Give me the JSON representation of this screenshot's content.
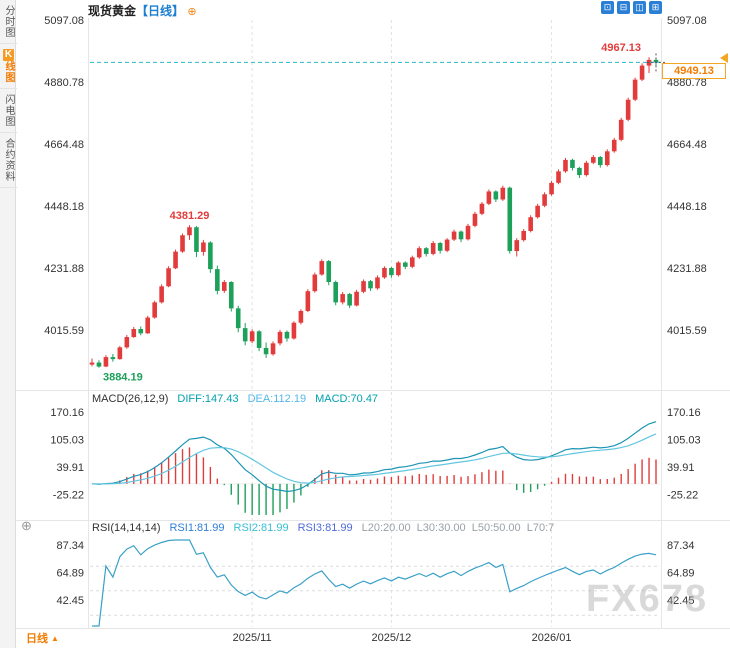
{
  "header": {
    "instrument": "现货黄金",
    "period_tag": "【日线】",
    "add_icon": "⊕",
    "icons": [
      {
        "name": "layout-single-pane-icon",
        "glyph": "⊡"
      },
      {
        "name": "layout-two-pane-icon",
        "glyph": "⊟"
      },
      {
        "name": "layout-three-pane-icon",
        "glyph": "◫"
      },
      {
        "name": "layout-grid-pane-icon",
        "glyph": "⊞"
      }
    ]
  },
  "sidebar": {
    "items": [
      {
        "name": "sidebar-item-time-chart",
        "label": "分时图",
        "active": false
      },
      {
        "name": "sidebar-item-kline-chart",
        "label": "K线图",
        "active": true
      },
      {
        "name": "sidebar-item-lightning-chart",
        "label": "闪电图",
        "active": false
      },
      {
        "name": "sidebar-item-contract-info",
        "label": "合约资料",
        "active": false
      }
    ]
  },
  "footer": {
    "period_label": "日线",
    "arrow": "▲"
  },
  "price_tag": {
    "value": "4949.13"
  },
  "indicator_settings_icon": "⊕",
  "watermark": "FX678",
  "colors": {
    "up": "#e23b3b",
    "down": "#1ca05a",
    "diff_line": "#1c94b4",
    "dea_line": "#62c6e0",
    "rsi_line": "#3aa0c8",
    "price_line": "#2bb8cd",
    "accent": "#f57c00",
    "tag_border": "#f5a623",
    "blue": "#1e7fd0"
  },
  "chart_data": {
    "type": "candlestick",
    "title": "现货黄金【日线】",
    "x_axis": {
      "labels": [
        "2025/11",
        "2025/12",
        "2026/01"
      ],
      "label_indices": [
        23,
        43,
        66
      ]
    },
    "price_axis_ticks": [
      5097.08,
      4880.78,
      4664.48,
      4448.18,
      4231.88,
      4015.59
    ],
    "candles": [
      [
        3895,
        3916,
        3889,
        3902
      ],
      [
        3902,
        3910,
        3884.19,
        3888
      ],
      [
        3888,
        3928,
        3886,
        3921
      ],
      [
        3921,
        3932,
        3905,
        3914
      ],
      [
        3914,
        3960,
        3912,
        3955
      ],
      [
        3955,
        3998,
        3950,
        3991
      ],
      [
        3991,
        4026,
        3988,
        4019
      ],
      [
        4019,
        4028,
        3997,
        4004
      ],
      [
        4004,
        4065,
        4002,
        4059
      ],
      [
        4059,
        4118,
        4055,
        4112
      ],
      [
        4112,
        4175,
        4108,
        4168
      ],
      [
        4168,
        4238,
        4165,
        4231
      ],
      [
        4231,
        4296,
        4228,
        4289
      ],
      [
        4289,
        4352,
        4285,
        4346
      ],
      [
        4346,
        4381.29,
        4330,
        4374
      ],
      [
        4374,
        4378,
        4270,
        4288
      ],
      [
        4288,
        4330,
        4275,
        4321
      ],
      [
        4321,
        4325,
        4215,
        4228
      ],
      [
        4228,
        4240,
        4140,
        4152
      ],
      [
        4152,
        4190,
        4145,
        4183
      ],
      [
        4183,
        4186,
        4080,
        4091
      ],
      [
        4091,
        4100,
        4008,
        4022
      ],
      [
        4022,
        4040,
        3962,
        3976
      ],
      [
        3976,
        4018,
        3970,
        4011
      ],
      [
        4011,
        4015,
        3942,
        3953
      ],
      [
        3953,
        3972,
        3918,
        3931
      ],
      [
        3931,
        3976,
        3926,
        3969
      ],
      [
        3969,
        4016,
        3962,
        4009
      ],
      [
        4009,
        4014,
        3975,
        3986
      ],
      [
        3986,
        4046,
        3982,
        4041
      ],
      [
        4041,
        4088,
        4035,
        4082
      ],
      [
        4082,
        4158,
        4078,
        4151
      ],
      [
        4151,
        4216,
        4146,
        4209
      ],
      [
        4209,
        4262,
        4205,
        4256
      ],
      [
        4256,
        4260,
        4172,
        4183
      ],
      [
        4183,
        4188,
        4102,
        4112
      ],
      [
        4112,
        4148,
        4105,
        4141
      ],
      [
        4141,
        4145,
        4092,
        4101
      ],
      [
        4101,
        4156,
        4098,
        4149
      ],
      [
        4149,
        4192,
        4144,
        4186
      ],
      [
        4186,
        4190,
        4152,
        4161
      ],
      [
        4161,
        4206,
        4156,
        4199
      ],
      [
        4199,
        4238,
        4194,
        4232
      ],
      [
        4232,
        4236,
        4198,
        4207
      ],
      [
        4207,
        4256,
        4202,
        4251
      ],
      [
        4251,
        4255,
        4228,
        4236
      ],
      [
        4236,
        4275,
        4231,
        4269
      ],
      [
        4269,
        4308,
        4264,
        4301
      ],
      [
        4301,
        4305,
        4272,
        4281
      ],
      [
        4281,
        4326,
        4276,
        4319
      ],
      [
        4319,
        4323,
        4282,
        4292
      ],
      [
        4292,
        4336,
        4287,
        4331
      ],
      [
        4331,
        4366,
        4326,
        4359
      ],
      [
        4359,
        4363,
        4322,
        4332
      ],
      [
        4332,
        4386,
        4328,
        4379
      ],
      [
        4379,
        4428,
        4374,
        4421
      ],
      [
        4421,
        4462,
        4416,
        4456
      ],
      [
        4456,
        4506,
        4451,
        4499
      ],
      [
        4499,
        4503,
        4462,
        4471
      ],
      [
        4471,
        4519,
        4466,
        4512
      ],
      [
        4512,
        4516,
        4282,
        4291
      ],
      [
        4291,
        4336,
        4272,
        4329
      ],
      [
        4329,
        4368,
        4324,
        4361
      ],
      [
        4361,
        4416,
        4356,
        4409
      ],
      [
        4409,
        4456,
        4404,
        4449
      ],
      [
        4449,
        4496,
        4444,
        4489
      ],
      [
        4489,
        4536,
        4484,
        4529
      ],
      [
        4529,
        4576,
        4524,
        4569
      ],
      [
        4569,
        4616,
        4564,
        4609
      ],
      [
        4609,
        4613,
        4572,
        4581
      ],
      [
        4581,
        4585,
        4546,
        4556
      ],
      [
        4556,
        4606,
        4551,
        4599
      ],
      [
        4599,
        4626,
        4594,
        4619
      ],
      [
        4619,
        4623,
        4582,
        4591
      ],
      [
        4591,
        4646,
        4586,
        4639
      ],
      [
        4639,
        4686,
        4634,
        4679
      ],
      [
        4679,
        4756,
        4674,
        4749
      ],
      [
        4749,
        4826,
        4744,
        4819
      ],
      [
        4819,
        4896,
        4814,
        4889
      ],
      [
        4889,
        4946,
        4884,
        4938
      ],
      [
        4938,
        4967.13,
        4912,
        4958
      ],
      [
        4958,
        4962,
        4932,
        4949.13
      ]
    ],
    "annotations": {
      "peak_label": "4381.29",
      "peak_index": 14,
      "low_label": "3884.19",
      "low_index": 1,
      "high_label": "4967.13",
      "high_index": 80,
      "last_price": "4949.13",
      "last_price_value": 4949.13
    },
    "indicators": {
      "macd": {
        "header": "MACD(26,12,9)",
        "diff_label": "DIFF:147.43",
        "dea_label": "DEA:112.19",
        "macd_label": "MACD:70.47",
        "ticks": [
          170.16,
          105.03,
          39.91,
          -25.22
        ]
      },
      "rsi": {
        "header": "RSI(14,14,14)",
        "rsi1_label": "RSI1:81.99",
        "rsi2_label": "RSI2:81.99",
        "rsi3_label": "RSI3:81.99",
        "levels_label": "L20:20.00  L30:30.00  L50:50.00  L70:7",
        "ticks": [
          87.34,
          64.89,
          42.45
        ],
        "ref_levels": [
          70,
          50,
          30
        ]
      }
    }
  }
}
